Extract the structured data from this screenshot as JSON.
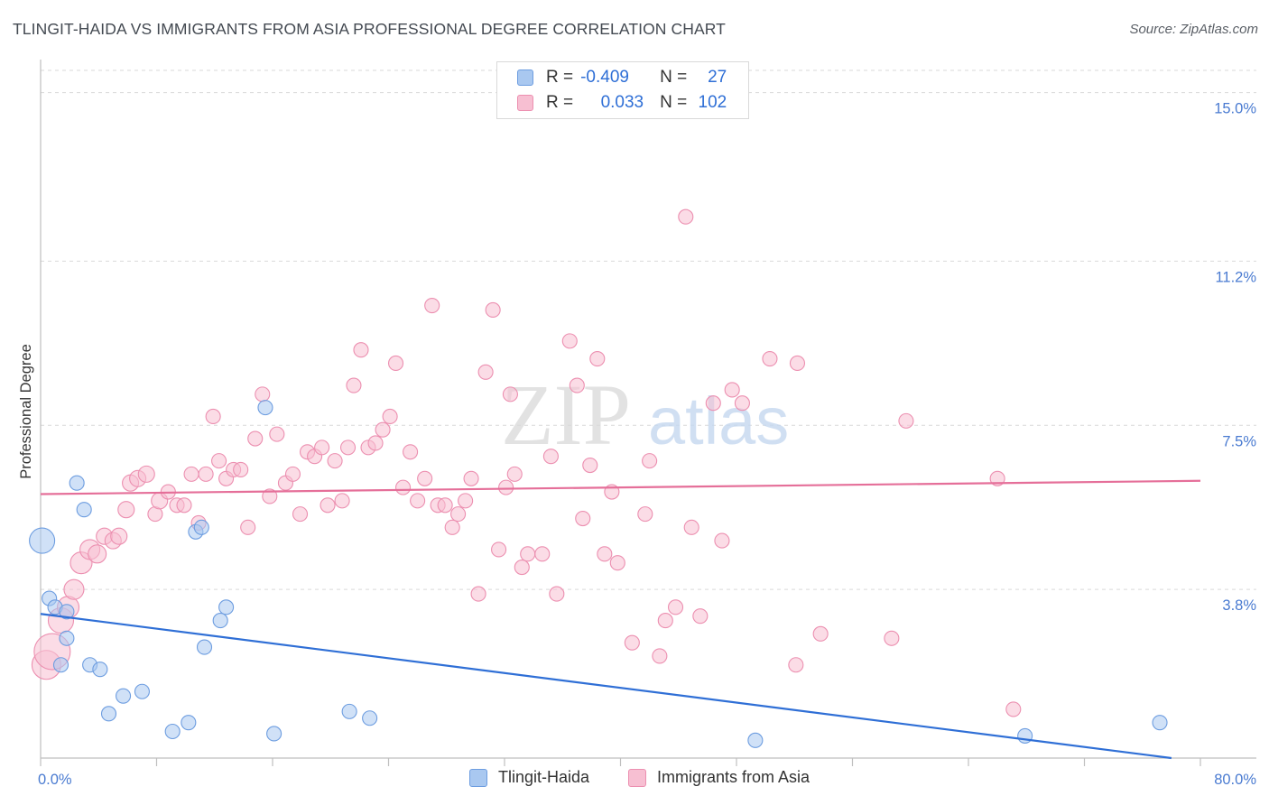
{
  "header": {
    "title": "TLINGIT-HAIDA VS IMMIGRANTS FROM ASIA PROFESSIONAL DEGREE CORRELATION CHART",
    "source": "Source: ZipAtlas.com"
  },
  "watermark": {
    "zip": "ZIP",
    "atlas": "atlas"
  },
  "legend": {
    "rows": [
      {
        "r_label": "R =",
        "r_value": "-0.409",
        "n_label": "N =",
        "n_value": "27"
      },
      {
        "r_label": "R =",
        "r_value": "0.033",
        "n_label": "N =",
        "n_value": "102"
      }
    ]
  },
  "colors": {
    "blue_fill": "#a9c8f0",
    "blue_stroke": "#6d9de0",
    "blue_line": "#2f6fd6",
    "pink_fill": "#f7bfd2",
    "pink_stroke": "#ec8fb0",
    "pink_line": "#e56f99",
    "grid": "#d9d9d9",
    "axis": "#bfbfbf",
    "tick_text": "#4a7bd1"
  },
  "chart_data": {
    "type": "scatter",
    "ylabel": "Professional Degree",
    "xlim": [
      0,
      80
    ],
    "ylim": [
      0,
      15.5
    ],
    "y_ticks": [
      {
        "value": 3.8,
        "label": "3.8%"
      },
      {
        "value": 7.5,
        "label": "7.5%"
      },
      {
        "value": 11.2,
        "label": "11.2%"
      },
      {
        "value": 15.0,
        "label": "15.0%"
      }
    ],
    "x_ticks": [
      {
        "value": 0,
        "label": "0.0%"
      },
      {
        "value": 80,
        "label": "80.0%"
      }
    ],
    "series": [
      {
        "name": "Tlingit-Haida",
        "trend": {
          "x0": 0,
          "y0": 3.25,
          "x1": 78,
          "y1": 0.0
        },
        "points": [
          [
            0.1,
            4.9,
            14
          ],
          [
            0.6,
            3.6,
            8
          ],
          [
            1.0,
            3.4,
            8
          ],
          [
            1.8,
            3.3,
            8
          ],
          [
            1.4,
            2.1,
            8
          ],
          [
            1.8,
            2.7,
            8
          ],
          [
            2.5,
            6.2,
            8
          ],
          [
            3.0,
            5.6,
            8
          ],
          [
            3.4,
            2.1,
            8
          ],
          [
            4.1,
            2.0,
            8
          ],
          [
            4.7,
            1.0,
            8
          ],
          [
            5.7,
            1.4,
            8
          ],
          [
            7.0,
            1.5,
            8
          ],
          [
            9.1,
            0.6,
            8
          ],
          [
            10.2,
            0.8,
            8
          ],
          [
            10.7,
            5.1,
            8
          ],
          [
            11.1,
            5.2,
            8
          ],
          [
            11.3,
            2.5,
            8
          ],
          [
            12.4,
            3.1,
            8
          ],
          [
            12.8,
            3.4,
            8
          ],
          [
            15.5,
            7.9,
            8
          ],
          [
            16.1,
            0.55,
            8
          ],
          [
            21.3,
            1.05,
            8
          ],
          [
            22.7,
            0.9,
            8
          ],
          [
            49.3,
            0.4,
            8
          ],
          [
            67.9,
            0.5,
            8
          ],
          [
            77.2,
            0.8,
            8
          ]
        ]
      },
      {
        "name": "Immigrants from Asia",
        "trend": {
          "x0": 0,
          "y0": 5.95,
          "x1": 80,
          "y1": 6.25
        },
        "points": [
          [
            0.4,
            2.1,
            16
          ],
          [
            0.8,
            2.4,
            20
          ],
          [
            1.4,
            3.1,
            14
          ],
          [
            1.9,
            3.4,
            12
          ],
          [
            2.3,
            3.8,
            11
          ],
          [
            2.8,
            4.4,
            12
          ],
          [
            3.4,
            4.7,
            11
          ],
          [
            3.9,
            4.6,
            10
          ],
          [
            4.4,
            5.0,
            9
          ],
          [
            5.0,
            4.9,
            9
          ],
          [
            5.4,
            5.0,
            9
          ],
          [
            5.9,
            5.6,
            9
          ],
          [
            6.2,
            6.2,
            9
          ],
          [
            6.7,
            6.3,
            9
          ],
          [
            7.3,
            6.4,
            9
          ],
          [
            7.9,
            5.5,
            8
          ],
          [
            8.2,
            5.8,
            9
          ],
          [
            8.8,
            6.0,
            8
          ],
          [
            9.4,
            5.7,
            8
          ],
          [
            9.9,
            5.7,
            8
          ],
          [
            10.4,
            6.4,
            8
          ],
          [
            10.9,
            5.3,
            8
          ],
          [
            11.4,
            6.4,
            8
          ],
          [
            11.9,
            7.7,
            8
          ],
          [
            12.3,
            6.7,
            8
          ],
          [
            12.8,
            6.3,
            8
          ],
          [
            13.3,
            6.5,
            8
          ],
          [
            13.8,
            6.5,
            8
          ],
          [
            14.3,
            5.2,
            8
          ],
          [
            14.8,
            7.2,
            8
          ],
          [
            15.3,
            8.2,
            8
          ],
          [
            15.8,
            5.9,
            8
          ],
          [
            16.3,
            7.3,
            8
          ],
          [
            16.9,
            6.2,
            8
          ],
          [
            17.4,
            6.4,
            8
          ],
          [
            17.9,
            5.5,
            8
          ],
          [
            18.4,
            6.9,
            8
          ],
          [
            18.9,
            6.8,
            8
          ],
          [
            19.4,
            7.0,
            8
          ],
          [
            19.8,
            5.7,
            8
          ],
          [
            20.3,
            6.7,
            8
          ],
          [
            20.8,
            5.8,
            8
          ],
          [
            21.2,
            7.0,
            8
          ],
          [
            21.6,
            8.4,
            8
          ],
          [
            22.1,
            9.2,
            8
          ],
          [
            22.6,
            7.0,
            8
          ],
          [
            23.1,
            7.1,
            8
          ],
          [
            23.6,
            7.4,
            8
          ],
          [
            24.1,
            7.7,
            8
          ],
          [
            24.5,
            8.9,
            8
          ],
          [
            25.0,
            6.1,
            8
          ],
          [
            25.5,
            6.9,
            8
          ],
          [
            26.0,
            5.8,
            8
          ],
          [
            26.5,
            6.3,
            8
          ],
          [
            27.0,
            10.2,
            8
          ],
          [
            27.4,
            5.7,
            8
          ],
          [
            27.9,
            5.7,
            8
          ],
          [
            28.4,
            5.2,
            8
          ],
          [
            28.8,
            5.5,
            8
          ],
          [
            29.3,
            5.8,
            8
          ],
          [
            29.7,
            6.3,
            8
          ],
          [
            30.2,
            3.7,
            8
          ],
          [
            30.7,
            8.7,
            8
          ],
          [
            31.2,
            10.1,
            8
          ],
          [
            31.6,
            4.7,
            8
          ],
          [
            32.1,
            6.1,
            8
          ],
          [
            32.4,
            8.2,
            8
          ],
          [
            32.7,
            6.4,
            8
          ],
          [
            33.2,
            4.3,
            8
          ],
          [
            33.6,
            4.6,
            8
          ],
          [
            34.6,
            4.6,
            8
          ],
          [
            35.2,
            6.8,
            8
          ],
          [
            35.6,
            3.7,
            8
          ],
          [
            36.5,
            9.4,
            8
          ],
          [
            37.0,
            8.4,
            8
          ],
          [
            37.4,
            5.4,
            8
          ],
          [
            37.9,
            6.6,
            8
          ],
          [
            38.4,
            9.0,
            8
          ],
          [
            38.9,
            4.6,
            8
          ],
          [
            39.4,
            6.0,
            8
          ],
          [
            39.8,
            4.4,
            8
          ],
          [
            40.8,
            2.6,
            8
          ],
          [
            41.7,
            5.5,
            8
          ],
          [
            42.0,
            6.7,
            8
          ],
          [
            42.7,
            2.3,
            8
          ],
          [
            43.1,
            3.1,
            8
          ],
          [
            43.8,
            3.4,
            8
          ],
          [
            44.5,
            12.2,
            8
          ],
          [
            44.9,
            5.2,
            8
          ],
          [
            45.5,
            3.2,
            8
          ],
          [
            46.4,
            8.0,
            8
          ],
          [
            47.0,
            4.9,
            8
          ],
          [
            47.7,
            8.3,
            8
          ],
          [
            48.4,
            8.0,
            8
          ],
          [
            50.3,
            9.0,
            8
          ],
          [
            52.2,
            8.9,
            8
          ],
          [
            52.1,
            2.1,
            8
          ],
          [
            53.8,
            2.8,
            8
          ],
          [
            58.7,
            2.7,
            8
          ],
          [
            59.7,
            7.6,
            8
          ],
          [
            67.1,
            1.1,
            8
          ],
          [
            66.0,
            6.3,
            8
          ]
        ]
      }
    ]
  }
}
